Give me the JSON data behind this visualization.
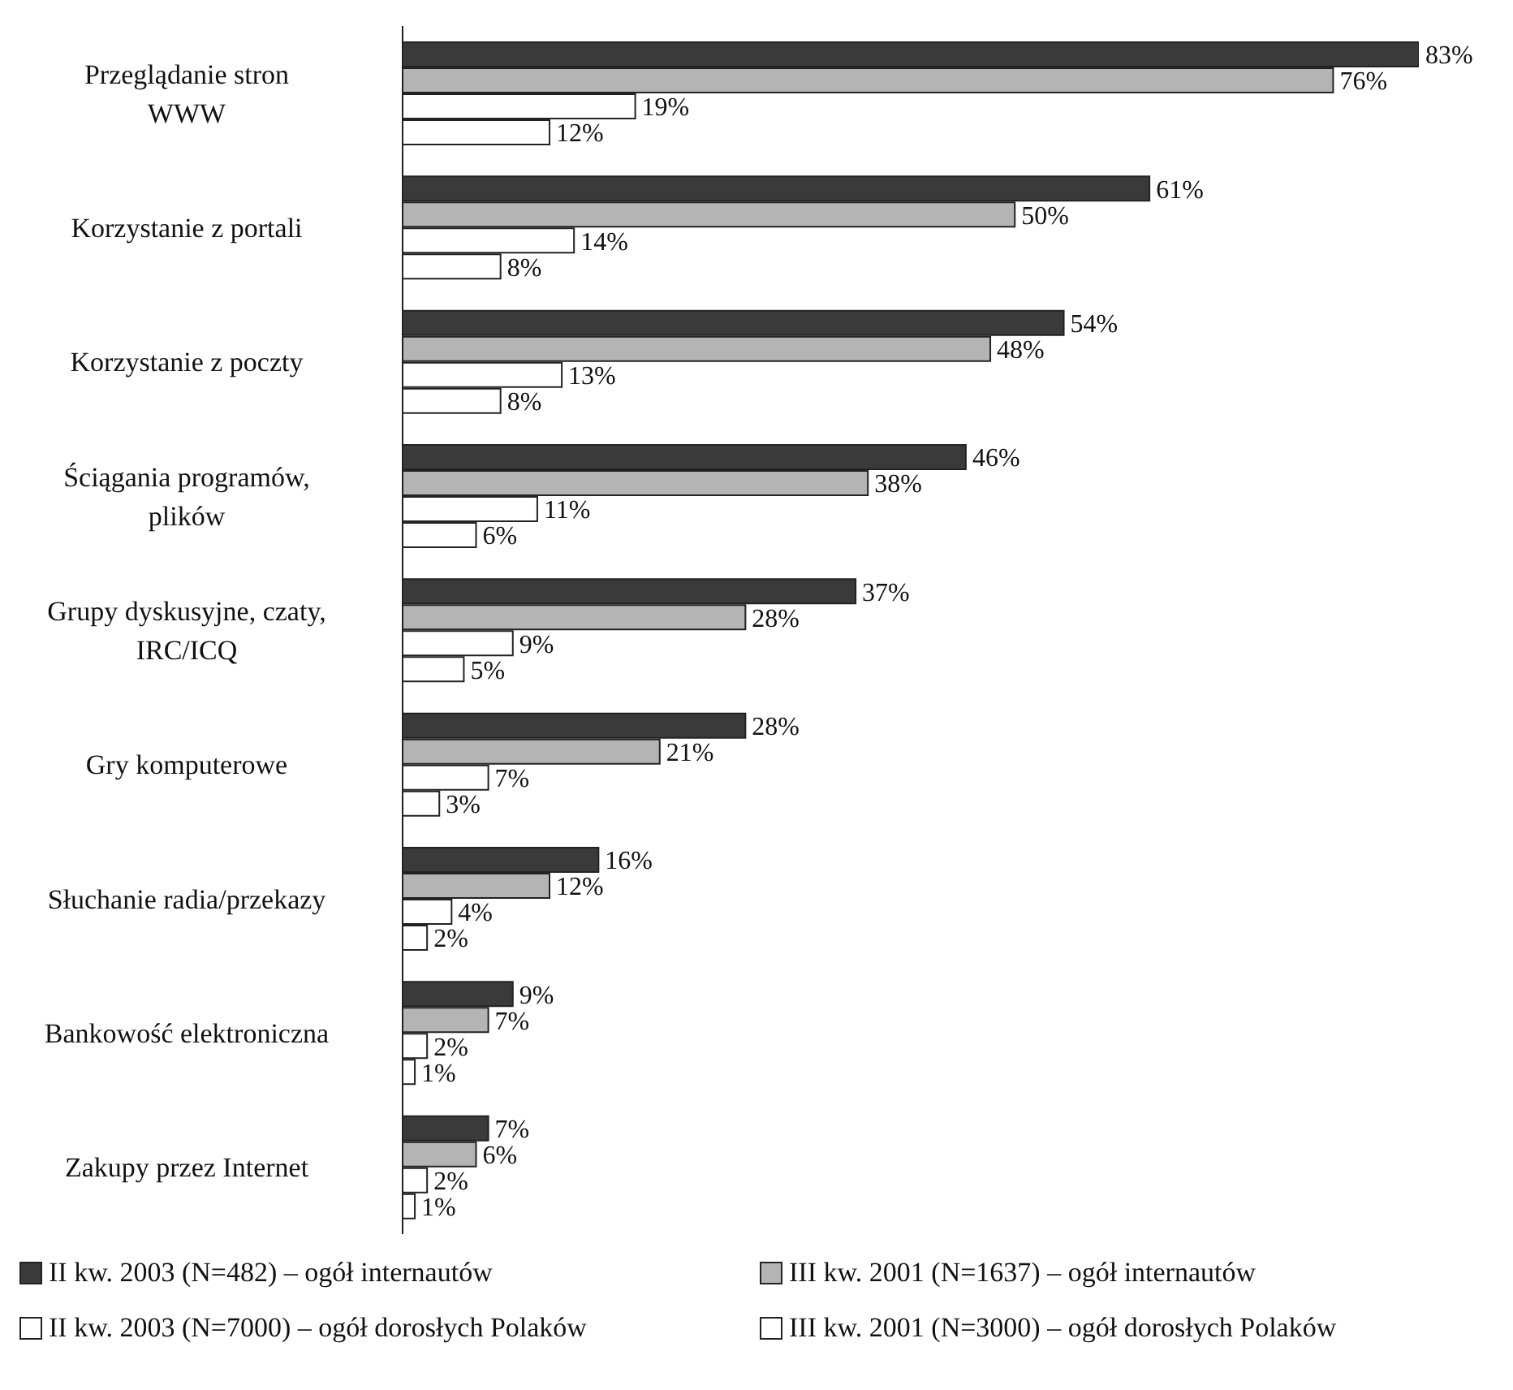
{
  "chart_data": {
    "type": "bar",
    "orientation": "horizontal",
    "legend": "bottom",
    "categories": [
      "Przeglądanie stron\nWWW",
      "Korzystanie z portali",
      "Korzystanie z poczty",
      "Ściągania programów,\nplików",
      "Grupy dyskusyjne, czaty,\nIRC/ICQ",
      "Gry komputerowe",
      "Słuchanie radia/przekazy",
      "Bankowość elektroniczna",
      "Zakupy przez Internet"
    ],
    "series": [
      {
        "name": "II kw. 2003 (N=482) – ogół internautów",
        "color": "#3a3a3a",
        "values": [
          83,
          61,
          54,
          46,
          37,
          28,
          16,
          9,
          7
        ],
        "value_labels": [
          "83%",
          "61%",
          "54%",
          "46%",
          "37%",
          "28%",
          "16%",
          "9%",
          "7%"
        ]
      },
      {
        "name": "III kw. 2001 (N=1637) – ogół internautów",
        "color": "#b4b4b4",
        "values": [
          76,
          50,
          48,
          38,
          28,
          21,
          12,
          7,
          6
        ],
        "value_labels": [
          "76%",
          "50%",
          "48%",
          "38%",
          "28%",
          "21%",
          "12%",
          "7%",
          "6%"
        ]
      },
      {
        "name": "II kw. 2003 (N=7000) – ogół dorosłych Polaków",
        "color": "#ffffff",
        "values": [
          19,
          14,
          13,
          11,
          9,
          7,
          4,
          2,
          2
        ],
        "value_labels": [
          "19%",
          "14%",
          "13%",
          "11%",
          "9%",
          "7%",
          "4%",
          "2%",
          "2%"
        ]
      },
      {
        "name": "III kw. 2001 (N=3000) – ogół dorosłych Polaków",
        "color": "#ffffff",
        "values": [
          12,
          8,
          8,
          6,
          5,
          3,
          2,
          1,
          1
        ],
        "value_labels": [
          "12%",
          "8%",
          "8%",
          "6%",
          "5%",
          "3%",
          "2%",
          "1%",
          "1%"
        ]
      }
    ]
  }
}
